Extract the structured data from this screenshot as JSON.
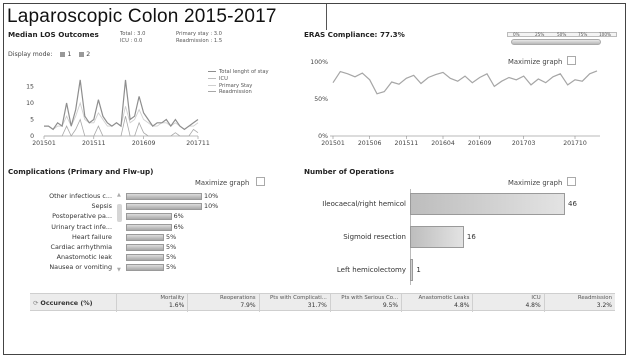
{
  "slide": {
    "title": "Laparoscopic Colon 2015-2017"
  },
  "los": {
    "title": "Median LOS Outcomes",
    "stats": {
      "total": "Total : 3.0",
      "icu": "ICU : 0.0",
      "primary": "Primary stay : 3.0",
      "readmission": "Readmission : 1.5"
    },
    "display_mode_label": "Display mode:",
    "mode_options": [
      "1",
      "2"
    ],
    "legend": [
      "Total lenght of stay",
      "ICU",
      "Primary Stay",
      "Readmission"
    ]
  },
  "eras": {
    "title": "ERAS Compliance: 77.3%",
    "slider_ticks": [
      "0%",
      "25%",
      "50%",
      "75%",
      "100%"
    ],
    "maximize_label": "Maximize graph"
  },
  "complications": {
    "title": "Complications (Primary and Flw-up)",
    "maximize_label": "Maximize graph"
  },
  "operations": {
    "title": "Number of Operations",
    "maximize_label": "Maximize graph"
  },
  "summary": {
    "row_label": "Occurence (%)",
    "columns": [
      {
        "header": "Mortality",
        "value": "1.6%"
      },
      {
        "header": "Reoperations",
        "value": "7.9%"
      },
      {
        "header": "Pts with Complicati...",
        "value": "31.7%"
      },
      {
        "header": "Pts with Serious Co...",
        "value": "9.5%"
      },
      {
        "header": "Anastomotic Leaks",
        "value": "4.8%"
      },
      {
        "header": "ICU",
        "value": "4.8%"
      },
      {
        "header": "Readmission",
        "value": "3.2%"
      }
    ]
  },
  "chart_data": [
    {
      "type": "line",
      "title": "Median LOS Outcomes",
      "x_ticks": [
        "201501",
        "201511",
        "201609",
        "201711"
      ],
      "ylim": [
        0,
        20
      ],
      "y_ticks": [
        0,
        5,
        10,
        15
      ],
      "series": [
        {
          "name": "Total lenght of stay",
          "values": [
            3,
            3,
            2,
            4,
            3,
            10,
            3,
            8,
            17,
            6,
            4,
            5,
            11,
            6,
            4,
            3,
            4,
            3,
            17,
            5,
            6,
            12,
            7,
            5,
            3,
            4,
            4,
            5,
            3,
            5,
            3,
            2,
            3,
            4,
            5
          ]
        },
        {
          "name": "Primary Stay",
          "values": [
            3,
            3,
            2,
            3,
            3,
            6,
            3,
            6,
            10,
            5,
            4,
            4,
            7,
            5,
            3,
            3,
            4,
            3,
            9,
            4,
            5,
            8,
            5,
            4,
            3,
            3,
            4,
            4,
            3,
            4,
            3,
            2,
            3,
            3,
            4
          ]
        },
        {
          "name": "Readmission",
          "values": [
            0,
            0,
            0,
            0,
            0,
            3,
            0,
            2,
            5,
            0,
            0,
            0,
            3,
            0,
            0,
            0,
            0,
            0,
            6,
            0,
            0,
            4,
            1,
            0,
            0,
            0,
            0,
            0,
            0,
            1,
            0,
            0,
            0,
            2,
            1
          ]
        },
        {
          "name": "ICU",
          "values": [
            0,
            0,
            0,
            0,
            0,
            0,
            0,
            0,
            0,
            0,
            0,
            0,
            0,
            0,
            0,
            0,
            0,
            0,
            0,
            0,
            0,
            0,
            0,
            0,
            0,
            0,
            0,
            0,
            0,
            0,
            0,
            0,
            0,
            0,
            0
          ]
        }
      ]
    },
    {
      "type": "line",
      "title": "ERAS Compliance: 77.3%",
      "x_ticks": [
        "201501",
        "201506",
        "201511",
        "201604",
        "201609",
        "201703",
        "201710"
      ],
      "ylim": [
        0,
        100
      ],
      "y_ticks": [
        "0%",
        "50%",
        "100%"
      ],
      "series": [
        {
          "values": [
            72,
            87,
            84,
            80,
            85,
            76,
            57,
            60,
            73,
            70,
            78,
            82,
            71,
            79,
            83,
            86,
            78,
            74,
            81,
            72,
            79,
            84,
            67,
            74,
            79,
            76,
            81,
            69,
            77,
            72,
            80,
            84,
            69,
            76,
            74,
            84,
            88
          ]
        }
      ]
    },
    {
      "type": "bar",
      "title": "Complications (Primary and Flw-up)",
      "categories": [
        "Other infectious c...",
        "Sepsis",
        "Postoperative pa...",
        "Urinary tract infe...",
        "Heart failure",
        "Cardiac arrhythmia",
        "Anastomotic leak",
        "Nausea or vomiting"
      ],
      "values": [
        10,
        10,
        6,
        6,
        5,
        5,
        5,
        5
      ],
      "labels": [
        "10%",
        "10%",
        "6%",
        "6%",
        "5%",
        "5%",
        "5%",
        "5%"
      ],
      "xlim": [
        0,
        10
      ]
    },
    {
      "type": "bar",
      "title": "Number of Operations",
      "categories": [
        "Ileocaecal/right hemicol",
        "Sigmoid resection",
        "Left hemicolectomy"
      ],
      "values": [
        46,
        16,
        1
      ],
      "xlim": [
        0,
        46
      ]
    }
  ]
}
